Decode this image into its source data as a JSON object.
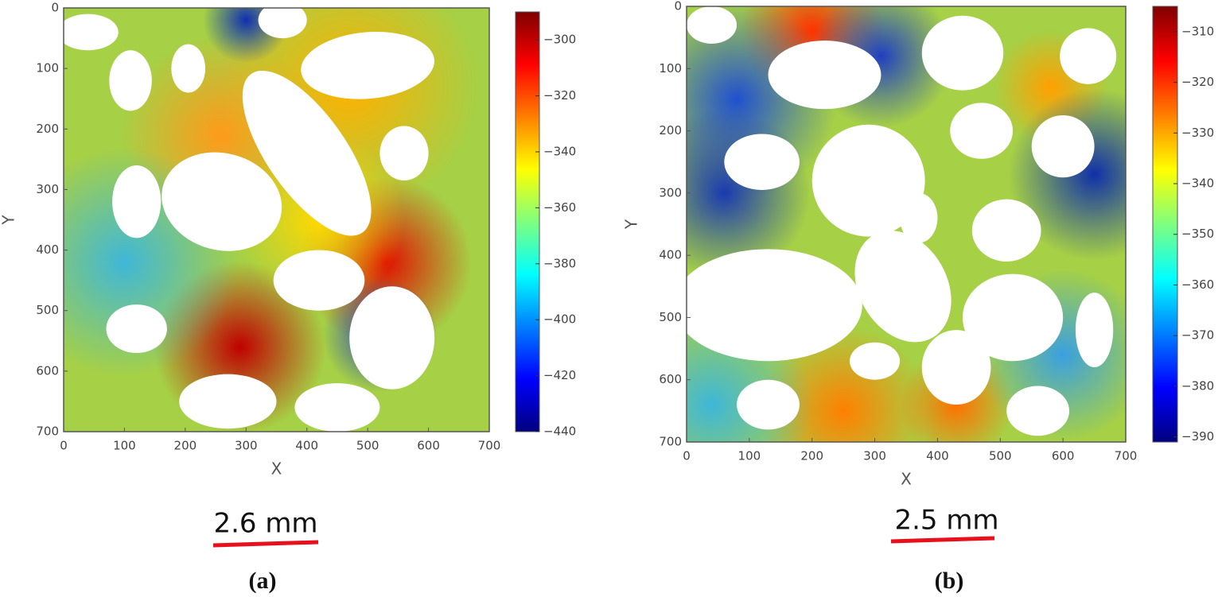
{
  "chart_data": [
    {
      "type": "heatmap",
      "xlabel": "X",
      "ylabel": "Y",
      "xlim": [
        0,
        700
      ],
      "ylim": [
        700,
        0
      ],
      "xticks": [
        0,
        100,
        200,
        300,
        400,
        500,
        600,
        700
      ],
      "yticks": [
        0,
        100,
        200,
        300,
        400,
        500,
        600,
        700
      ],
      "colorbar": {
        "colormap": "jet",
        "lim": [
          -440,
          -290
        ],
        "ticks": [
          {
            "value": -300,
            "label": "−300"
          },
          {
            "value": -320,
            "label": "−320"
          },
          {
            "value": -340,
            "label": "−340"
          },
          {
            "value": -360,
            "label": "−360"
          },
          {
            "value": -380,
            "label": "−380"
          },
          {
            "value": -400,
            "label": "−400"
          },
          {
            "value": -420,
            "label": "−420"
          },
          {
            "value": -440,
            "label": "−440"
          }
        ]
      },
      "scale_bar": "2.6 mm",
      "panel_label": "(a)"
    },
    {
      "type": "heatmap",
      "xlabel": "X",
      "ylabel": "Y",
      "xlim": [
        0,
        700
      ],
      "ylim": [
        700,
        0
      ],
      "xticks": [
        0,
        100,
        200,
        300,
        400,
        500,
        600,
        700
      ],
      "yticks": [
        0,
        100,
        200,
        300,
        400,
        500,
        600,
        700
      ],
      "colorbar": {
        "colormap": "jet",
        "lim": [
          -391,
          -305
        ],
        "ticks": [
          {
            "value": -310,
            "label": "−310"
          },
          {
            "value": -320,
            "label": "−320"
          },
          {
            "value": -330,
            "label": "−330"
          },
          {
            "value": -340,
            "label": "−340"
          },
          {
            "value": -350,
            "label": "−350"
          },
          {
            "value": -360,
            "label": "−360"
          },
          {
            "value": -370,
            "label": "−370"
          },
          {
            "value": -380,
            "label": "−380"
          },
          {
            "value": -390,
            "label": "−390"
          }
        ]
      },
      "scale_bar": "2.5 mm",
      "panel_label": "(b)"
    }
  ]
}
